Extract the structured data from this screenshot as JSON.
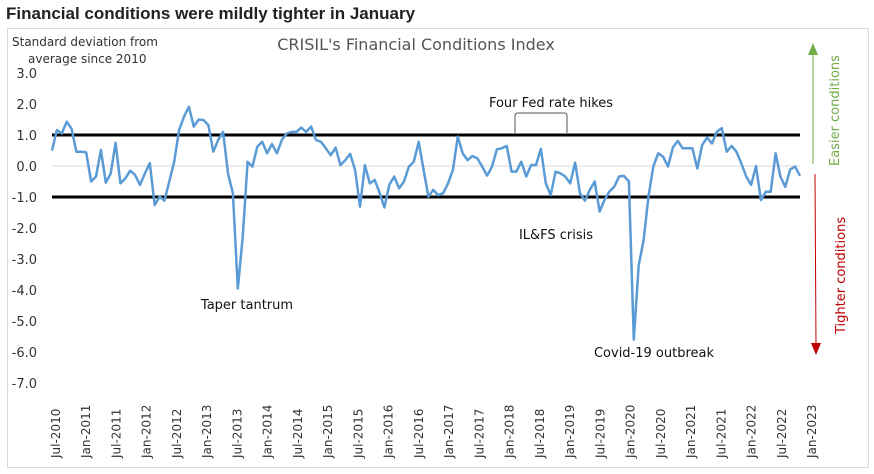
{
  "header": {
    "title": "Financial conditions were mildly tighter in January"
  },
  "chart_data": {
    "type": "line",
    "title": "CRISIL's Financial Conditions Index",
    "ylabel": "Standard deviation from average since 2010",
    "ylabel_lines": [
      "Standard deviation from",
      "average since 2010"
    ],
    "ylim": [
      -7,
      3
    ],
    "yticks": [
      "3.0",
      "2.0",
      "1.0",
      "0.0",
      "-1.0",
      "-2.0",
      "-3.0",
      "-4.0",
      "-5.0",
      "-6.0",
      "-7.0"
    ],
    "ytick_values": [
      3,
      2,
      1,
      0,
      -1,
      -2,
      -3,
      -4,
      -5,
      -6,
      -7
    ],
    "x_start": "Jul-2010",
    "x_end": "Jan-2023",
    "frequency": "monthly",
    "xticks": [
      "Jul-2010",
      "Jan-2011",
      "Jul-2011",
      "Jan-2012",
      "Jul-2012",
      "Jan-2013",
      "Jul-2013",
      "Jan-2014",
      "Jul-2014",
      "Jan-2015",
      "Jul-2015",
      "Jan-2016",
      "Jul-2016",
      "Jan-2017",
      "Jul-2017",
      "Jan-2018",
      "Jul-2018",
      "Jan-2019",
      "Jul-2019",
      "Jan-2020",
      "Jul-2020",
      "Jan-2021",
      "Jul-2021",
      "Jan-2022",
      "Jul-2022",
      "Jan-2023"
    ],
    "series": [
      {
        "color": "#5b9bd5",
        "values": [
          0.5,
          1.16,
          1.05,
          1.43,
          1.2,
          0.46,
          0.46,
          0.44,
          -0.5,
          -0.34,
          0.52,
          -0.54,
          -0.24,
          0.75,
          -0.56,
          -0.4,
          -0.15,
          -0.29,
          -0.61,
          -0.24,
          0.09,
          -1.26,
          -0.99,
          -1.12,
          -0.5,
          0.14,
          1.16,
          1.59,
          1.91,
          1.27,
          1.5,
          1.48,
          1.32,
          0.46,
          0.84,
          1.1,
          -0.24,
          -0.88,
          -3.95,
          -2.3,
          0.14,
          -0.02,
          0.62,
          0.78,
          0.41,
          0.71,
          0.41,
          0.84,
          1.05,
          1.1,
          1.1,
          1.24,
          1.1,
          1.27,
          0.84,
          0.78,
          0.57,
          0.35,
          0.59,
          0.03,
          0.19,
          0.39,
          -0.13,
          -1.31,
          0.03,
          -0.56,
          -0.45,
          -0.86,
          -1.34,
          -0.61,
          -0.34,
          -0.72,
          -0.5,
          -0.02,
          0.14,
          0.78,
          -0.13,
          -0.99,
          -0.77,
          -0.94,
          -0.88,
          -0.56,
          -0.13,
          0.95,
          0.41,
          0.19,
          0.32,
          0.25,
          -0.02,
          -0.31,
          -0.02,
          0.54,
          0.57,
          0.65,
          -0.18,
          -0.18,
          0.14,
          -0.34,
          0.03,
          0.03,
          0.55,
          -0.56,
          -0.94,
          -0.18,
          -0.24,
          -0.34,
          -0.56,
          0.11,
          -0.88,
          -1.12,
          -0.77,
          -0.5,
          -1.47,
          -1.1,
          -0.83,
          -0.67,
          -0.34,
          -0.32,
          -0.5,
          -5.6,
          -3.2,
          -2.4,
          -1.0,
          -0.02,
          0.41,
          0.3,
          -0.02,
          0.6,
          0.81,
          0.57,
          0.57,
          0.57,
          -0.08,
          0.68,
          0.92,
          0.73,
          1.11,
          1.22,
          0.46,
          0.65,
          0.46,
          0.09,
          -0.34,
          -0.61,
          0,
          -1.1,
          -0.83,
          -0.83,
          0.41,
          -0.34,
          -0.67,
          -0.11,
          -0.02,
          -0.32
        ]
      }
    ],
    "threshold_lines": [
      1.0,
      -1.0
    ],
    "grid": "zero line only",
    "annotations": {
      "fed": "Four Fed rate hikes",
      "ilfs": "IL&FS crisis",
      "taper": "Taper tantrum",
      "covid": "Covid-19 outbreak"
    },
    "side_labels": {
      "easier": "Easier conditions",
      "easier_color": "#70ad47",
      "tighter": "Tighter conditions",
      "tighter_color": "#c00000"
    }
  }
}
